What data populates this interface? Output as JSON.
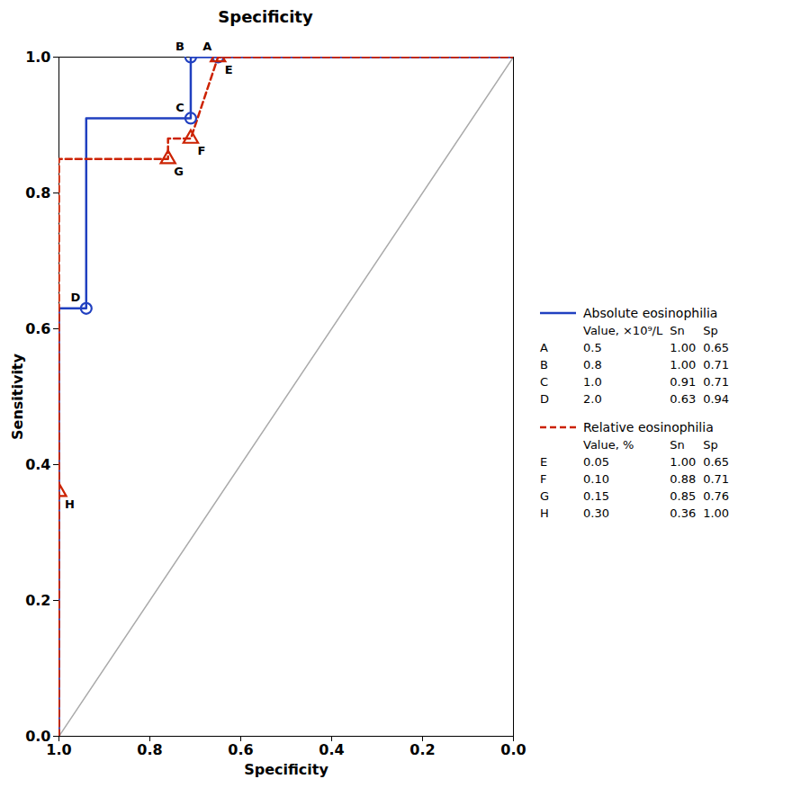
{
  "chart_data": {
    "type": "line",
    "title": "Specificity",
    "xlabel": "Specificity",
    "ylabel": "Sensitivity",
    "xlim": [
      1.0,
      0.0
    ],
    "ylim": [
      0.0,
      1.0
    ],
    "xticks": [
      {
        "value": 1.0,
        "label": "1.0"
      },
      0.8,
      0.6,
      0.4,
      0.2,
      {
        "value": 0.0,
        "label": "0.0"
      }
    ],
    "yticks": [
      {
        "value": 0.0,
        "label": "0.0"
      },
      0.2,
      0.4,
      0.6,
      0.8,
      {
        "value": 1.0,
        "label": "1.0"
      }
    ],
    "grid": false,
    "legend": "right",
    "table_columns": [
      "Sn",
      "Sp"
    ],
    "series": [
      {
        "color": "#AAAAAA",
        "line_style": "solid",
        "x": [
          1.0,
          0.0
        ],
        "values": [
          0.0,
          1.0
        ]
      },
      {
        "name": "Absolute eosinophilia",
        "color": "#2040C0",
        "line_style": "solid",
        "x": [
          1.0,
          1.0,
          0.94,
          0.94,
          0.71,
          0.71,
          0.65,
          0.0
        ],
        "values": [
          0.0,
          0.63,
          0.63,
          0.91,
          0.91,
          1.0,
          1.0,
          1.0
        ],
        "marker": "circle",
        "points": {
          "labels": [
            "A",
            "B",
            "C",
            "D"
          ],
          "x": [
            0.65,
            0.71,
            0.71,
            0.94
          ],
          "values": [
            1.0,
            1.0,
            0.91,
            0.63
          ]
        },
        "table_header": "Value, ×10⁹/L",
        "table_rows": [
          [
            "A",
            "0.5",
            "1.00",
            "0.65"
          ],
          [
            "B",
            "0.8",
            "1.00",
            "0.71"
          ],
          [
            "C",
            "1.0",
            "0.91",
            "0.71"
          ],
          [
            "D",
            "2.0",
            "0.63",
            "0.94"
          ]
        ]
      },
      {
        "name": "Relative eosinophilia",
        "color": "#CC2200",
        "line_style": "dashed",
        "x": [
          1.0,
          1.0,
          1.0,
          0.76,
          0.76,
          0.71,
          0.65,
          0.0
        ],
        "values": [
          0.0,
          0.36,
          0.85,
          0.85,
          0.88,
          0.88,
          1.0,
          1.0
        ],
        "marker": "triangle",
        "points": {
          "labels": [
            "E",
            "F",
            "G",
            "H"
          ],
          "x": [
            0.65,
            0.71,
            0.76,
            1.0
          ],
          "values": [
            1.0,
            0.88,
            0.85,
            0.36
          ]
        },
        "table_header": "Value, %",
        "table_rows": [
          [
            "E",
            "0.05",
            "1.00",
            "0.65"
          ],
          [
            "F",
            "0.10",
            "0.88",
            "0.71"
          ],
          [
            "G",
            "0.15",
            "0.85",
            "0.76"
          ],
          [
            "H",
            "0.30",
            "0.36",
            "1.00"
          ]
        ]
      }
    ]
  }
}
